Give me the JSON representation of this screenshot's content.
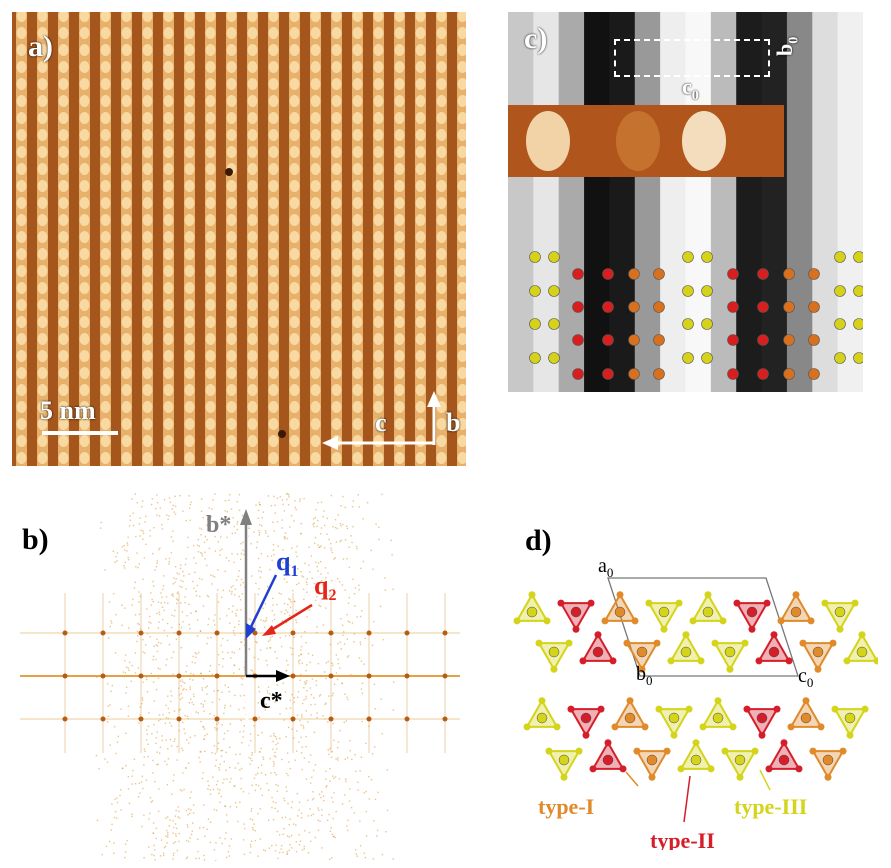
{
  "panel_a": {
    "label": "a)",
    "scale_bar": "5 nm",
    "axis_c": "c",
    "axis_b": "b",
    "colors": {
      "stripe_dark": "#a5561c",
      "stripe_light": "#f3c179",
      "spot": "#fbe3b0"
    }
  },
  "panel_b": {
    "label": "b)",
    "axis_b_star": "b*",
    "axis_c_star": "c*",
    "q1": {
      "base": "q",
      "sub": "1",
      "color": "#1e3fd2"
    },
    "q2": {
      "base": "q",
      "sub": "2",
      "color": "#e62418"
    }
  },
  "panel_c": {
    "label": "c)",
    "cell_c": {
      "base": "c",
      "sub": "0"
    },
    "cell_b": {
      "base": "b",
      "sub": "0"
    },
    "atom_colors": {
      "yellow": "#d6d21a",
      "red": "#d81e1e",
      "orange": "#d8701e"
    }
  },
  "panel_d": {
    "label": "d)",
    "cell_a": {
      "base": "a",
      "sub": "0"
    },
    "cell_b": {
      "base": "b",
      "sub": "0"
    },
    "cell_c": {
      "base": "c",
      "sub": "0"
    },
    "types": [
      {
        "name": "type-I",
        "color": "#e08a2a"
      },
      {
        "name": "type-II",
        "color": "#d41e2a"
      },
      {
        "name": "type-III",
        "color": "#d4d41a"
      }
    ]
  }
}
